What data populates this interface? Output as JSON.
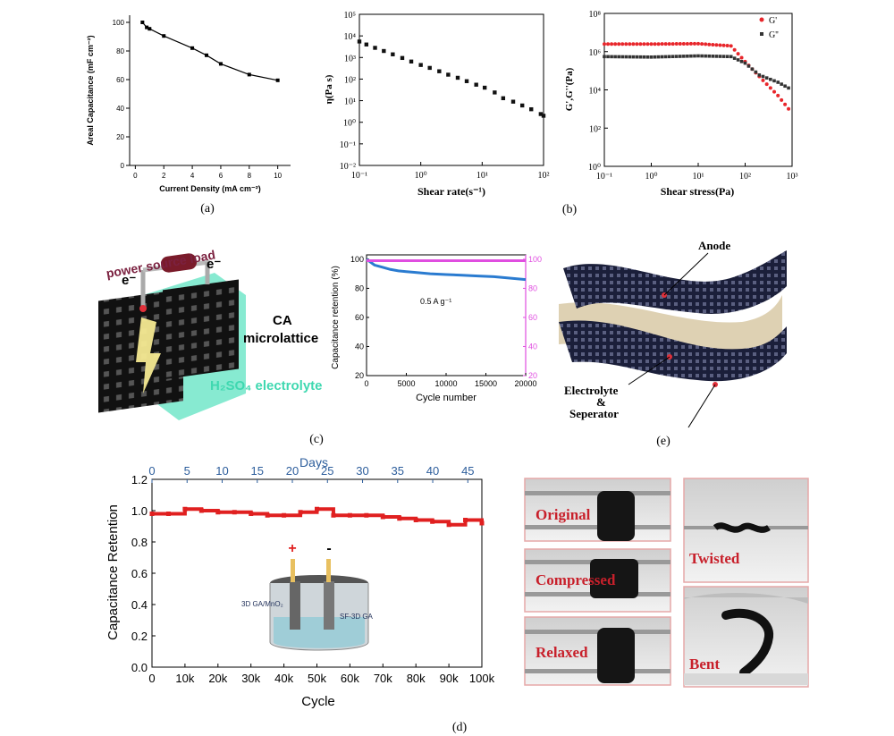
{
  "panels": {
    "a": "(a)",
    "b": "(b)",
    "c": "(c)",
    "d": "(d)",
    "e": "(e)"
  },
  "chart_data": [
    {
      "id": "a",
      "type": "line",
      "xlabel": "Current Density (mA cm⁻²)",
      "ylabel": "Areal Capacitance (mF cm⁻²)",
      "xlim": [
        -0.4,
        10.9
      ],
      "ylim": [
        0,
        105
      ],
      "xticks": [
        "0",
        "2",
        "4",
        "6",
        "8",
        "10"
      ],
      "yticks": [
        "0",
        "20",
        "40",
        "60",
        "80",
        "100"
      ],
      "series": [
        {
          "x": [
            0.5,
            0.8,
            1,
            2,
            4,
            5,
            6,
            8,
            10
          ],
          "values": [
            100,
            96.5,
            95.5,
            90.5,
            82,
            77,
            71,
            63.5,
            59.5
          ]
        }
      ]
    },
    {
      "id": "b1",
      "type": "scatter",
      "xscale": "log",
      "yscale": "log",
      "xlabel": "Shear rate(s⁻¹)",
      "ylabel": "η(Pa s)",
      "xlim": [
        0.1,
        100
      ],
      "ylim": [
        0.01,
        100000
      ],
      "xticks": [
        "10⁻¹",
        "10⁰",
        "10¹",
        "10²"
      ],
      "yticks": [
        "10⁻²",
        "10⁻¹",
        "10⁰",
        "10¹",
        "10²",
        "10³",
        "10⁴",
        "10⁵"
      ],
      "series": [
        {
          "x": [
            0.1,
            0.13,
            0.18,
            0.25,
            0.35,
            0.5,
            0.7,
            1,
            1.4,
            2,
            2.8,
            4,
            5.6,
            8,
            11,
            16,
            22,
            32,
            45,
            63,
            90,
            100
          ],
          "values": [
            5500,
            4000,
            2800,
            2000,
            1400,
            950,
            650,
            450,
            330,
            230,
            160,
            115,
            80,
            55,
            40,
            24,
            13,
            9,
            6,
            4,
            2.4,
            2
          ]
        }
      ]
    },
    {
      "id": "b2",
      "type": "scatter",
      "xscale": "log",
      "yscale": "log",
      "xlabel": "Shear stress(Pa)",
      "ylabel": "G',G''(Pa)",
      "xlim": [
        0.1,
        1000
      ],
      "ylim": [
        1,
        100000000
      ],
      "xticks": [
        "10⁻¹",
        "10⁰",
        "10¹",
        "10²",
        "10³"
      ],
      "yticks": [
        "10⁰",
        "10²",
        "10⁴",
        "10⁶",
        "10⁸"
      ],
      "legend": "top-right",
      "series": [
        {
          "name": "G'",
          "color": "#e8262b",
          "x": [
            0.1,
            1,
            10,
            50,
            100,
            200,
            500,
            1000
          ],
          "values": [
            2500000,
            2500000,
            2600000,
            2000000,
            300000,
            50000,
            5000,
            600
          ]
        },
        {
          "name": "G''",
          "color": "#333333",
          "x": [
            0.1,
            1,
            10,
            50,
            100,
            200,
            500,
            1000
          ],
          "values": [
            550000,
            520000,
            600000,
            550000,
            250000,
            60000,
            25000,
            10000
          ]
        }
      ]
    },
    {
      "id": "c",
      "type": "line",
      "xlabel": "Cycle number",
      "ylabel": "Capacitance retention (%)",
      "xlim": [
        0,
        20000
      ],
      "ylim": [
        20,
        103
      ],
      "xticks": [
        "0",
        "5000",
        "10000",
        "15000",
        "20000"
      ],
      "yticks": [
        "20",
        "40",
        "60",
        "80",
        "100"
      ],
      "annotation": "0.5 A g⁻¹",
      "series": [
        {
          "color": "#2a7bd0",
          "x": [
            0,
            1000,
            2000,
            3000,
            4000,
            5000,
            6000,
            8000,
            10000,
            12000,
            14000,
            16000,
            18000,
            20000
          ],
          "values": [
            100,
            96,
            94.5,
            93,
            92,
            91.5,
            91,
            90,
            89.5,
            89,
            88.5,
            88,
            87,
            86
          ]
        },
        {
          "color": "#e04ee0",
          "x": [
            0,
            20000
          ],
          "values": [
            99,
            99
          ]
        }
      ]
    },
    {
      "id": "d",
      "type": "line",
      "xlabel": "Cycle",
      "ylabel": "Capacitance Retention",
      "top_axis_label": "Days",
      "xlim": [
        0,
        100000
      ],
      "ylim": [
        0,
        1.2
      ],
      "xticks": [
        "0",
        "10k",
        "20k",
        "30k",
        "40k",
        "50k",
        "60k",
        "70k",
        "80k",
        "90k",
        "100k"
      ],
      "yticks": [
        "0.0",
        "0.2",
        "0.4",
        "0.6",
        "0.8",
        "1.0",
        "1.2"
      ],
      "top_xticks": [
        "0",
        "5",
        "10",
        "15",
        "20",
        "25",
        "30",
        "35",
        "40",
        "45"
      ],
      "inset_labels": {
        "plus": "+",
        "minus": "-",
        "left": "3D GA/MnO₂",
        "right": "SF-3D GA"
      },
      "series": [
        {
          "color": "#e02020",
          "x": [
            0,
            5000,
            10000,
            15000,
            20000,
            25000,
            30000,
            35000,
            40000,
            45000,
            50000,
            55000,
            60000,
            65000,
            70000,
            75000,
            80000,
            85000,
            90000,
            95000,
            100000
          ],
          "values": [
            0.98,
            0.98,
            1.01,
            1.0,
            0.99,
            0.99,
            0.98,
            0.97,
            0.97,
            0.99,
            1.01,
            0.97,
            0.97,
            0.97,
            0.96,
            0.95,
            0.94,
            0.93,
            0.91,
            0.94,
            0.92
          ]
        }
      ]
    }
  ],
  "figure_c": {
    "load_label": "power source load",
    "electron_left": "e⁻",
    "electron_right": "e⁻",
    "ca_label_1": "CA",
    "ca_label_2": "microlattice",
    "electrolyte_label": "H₂SO₄ electrolyte"
  },
  "figure_e": {
    "anode": "Anode",
    "electrolyte_1": "Electrolyte",
    "electrolyte_2": "&",
    "electrolyte_3": "Seperator"
  },
  "photos": {
    "original": "Original",
    "compressed": "Compressed",
    "relaxed": "Relaxed",
    "twisted": "Twisted",
    "bent": "Bent"
  }
}
